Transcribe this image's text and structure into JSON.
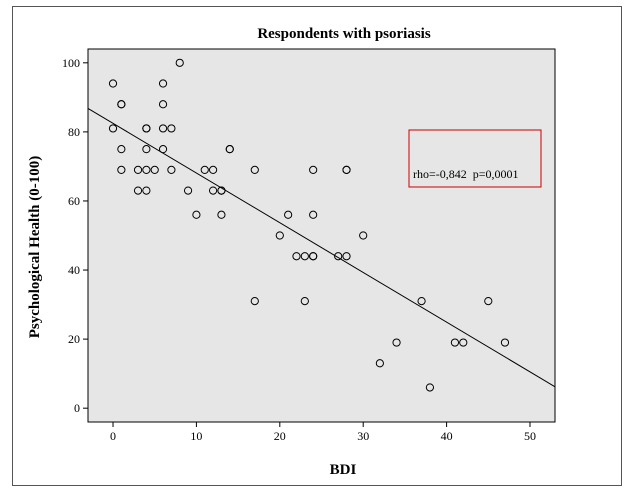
{
  "chart_data": {
    "type": "scatter",
    "title": "Respondents with psoriasis",
    "xlabel": "BDI",
    "ylabel": "Psychological Health (0-100)",
    "xlim": [
      -3,
      53
    ],
    "ylim": [
      -4,
      104
    ],
    "xticks": [
      0,
      10,
      20,
      30,
      40,
      50
    ],
    "yticks": [
      0,
      20,
      40,
      60,
      80,
      100
    ],
    "grid": false,
    "background": "#e6e6e6",
    "marker_color": "#000000",
    "points": [
      {
        "x": 0,
        "y": 94
      },
      {
        "x": 0,
        "y": 81
      },
      {
        "x": 1,
        "y": 88
      },
      {
        "x": 1,
        "y": 88
      },
      {
        "x": 1,
        "y": 75
      },
      {
        "x": 1,
        "y": 69
      },
      {
        "x": 3,
        "y": 69
      },
      {
        "x": 3,
        "y": 63
      },
      {
        "x": 4,
        "y": 81
      },
      {
        "x": 4,
        "y": 81
      },
      {
        "x": 4,
        "y": 75
      },
      {
        "x": 4,
        "y": 69
      },
      {
        "x": 4,
        "y": 63
      },
      {
        "x": 5,
        "y": 69
      },
      {
        "x": 6,
        "y": 94
      },
      {
        "x": 6,
        "y": 88
      },
      {
        "x": 6,
        "y": 81
      },
      {
        "x": 6,
        "y": 75
      },
      {
        "x": 7,
        "y": 81
      },
      {
        "x": 7,
        "y": 69
      },
      {
        "x": 8,
        "y": 100
      },
      {
        "x": 9,
        "y": 63
      },
      {
        "x": 10,
        "y": 56
      },
      {
        "x": 11,
        "y": 69
      },
      {
        "x": 12,
        "y": 69
      },
      {
        "x": 12,
        "y": 63
      },
      {
        "x": 13,
        "y": 63
      },
      {
        "x": 13,
        "y": 63
      },
      {
        "x": 13,
        "y": 56
      },
      {
        "x": 14,
        "y": 75
      },
      {
        "x": 14,
        "y": 75
      },
      {
        "x": 17,
        "y": 69
      },
      {
        "x": 17,
        "y": 31
      },
      {
        "x": 20,
        "y": 50
      },
      {
        "x": 21,
        "y": 56
      },
      {
        "x": 22,
        "y": 44
      },
      {
        "x": 23,
        "y": 44
      },
      {
        "x": 23,
        "y": 31
      },
      {
        "x": 24,
        "y": 69
      },
      {
        "x": 24,
        "y": 56
      },
      {
        "x": 24,
        "y": 44
      },
      {
        "x": 24,
        "y": 44
      },
      {
        "x": 27,
        "y": 44
      },
      {
        "x": 28,
        "y": 69
      },
      {
        "x": 28,
        "y": 69
      },
      {
        "x": 28,
        "y": 44
      },
      {
        "x": 30,
        "y": 50
      },
      {
        "x": 32,
        "y": 13
      },
      {
        "x": 34,
        "y": 19
      },
      {
        "x": 37,
        "y": 31
      },
      {
        "x": 38,
        "y": 6
      },
      {
        "x": 41,
        "y": 19
      },
      {
        "x": 42,
        "y": 19
      },
      {
        "x": 45,
        "y": 31
      },
      {
        "x": 47,
        "y": 19
      }
    ],
    "fit_line": {
      "x": [
        -3,
        53
      ],
      "y": [
        86.8,
        6.2
      ]
    },
    "annotation": {
      "text": "rho=-0,842  p=0,0001",
      "box_color": "#cc0000"
    }
  }
}
